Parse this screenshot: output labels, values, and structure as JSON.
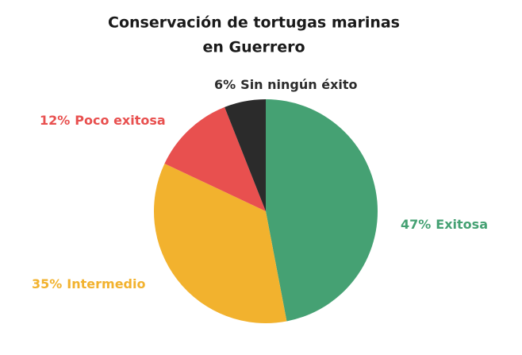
{
  "chart_data": {
    "type": "pie",
    "title": [
      "Conservación de tortugas marinas",
      "en Guerrero"
    ],
    "categories": [
      "Exitosa",
      "Intermedio",
      "Poco exitosa",
      "Sin ningún éxito"
    ],
    "values": [
      47,
      35,
      12,
      6
    ],
    "value_labels": [
      "47%",
      "35%",
      "12%",
      "6%"
    ],
    "colors": [
      "#45a173",
      "#f2b22e",
      "#e8504f",
      "#2b2b2b"
    ],
    "label_colors": [
      "#45a173",
      "#f2b22e",
      "#e8504f",
      "#2b2b2b"
    ]
  }
}
